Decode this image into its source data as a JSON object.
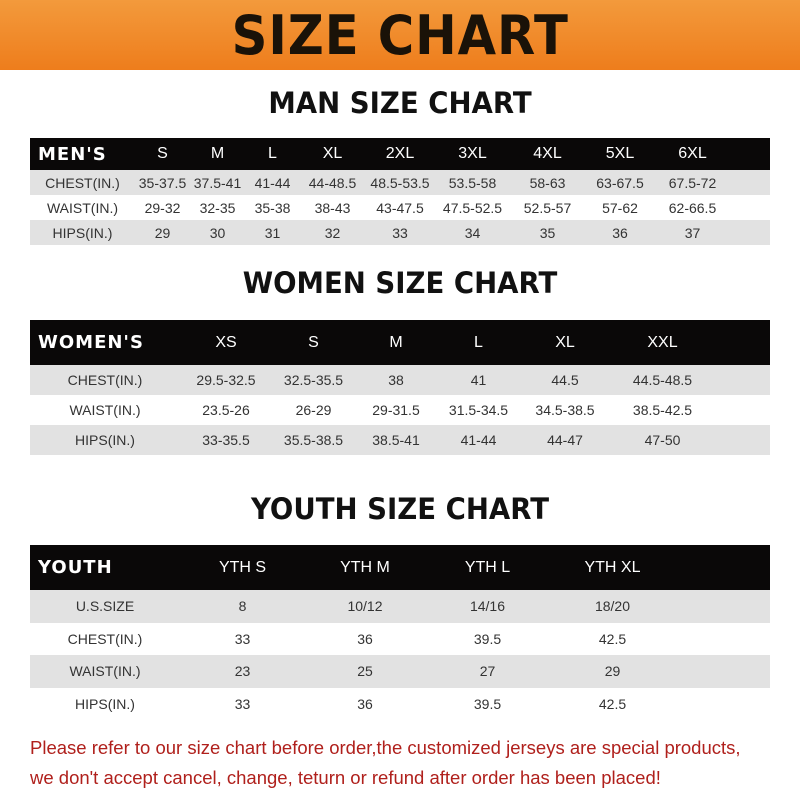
{
  "banner": {
    "title": "SIZE CHART"
  },
  "men": {
    "title": "MAN SIZE CHART",
    "header": [
      "MEN'S",
      "S",
      "M",
      "L",
      "XL",
      "2XL",
      "3XL",
      "4XL",
      "5XL",
      "6XL"
    ],
    "rows": [
      [
        "CHEST(IN.)",
        "35-37.5",
        "37.5-41",
        "41-44",
        "44-48.5",
        "48.5-53.5",
        "53.5-58",
        "58-63",
        "63-67.5",
        "67.5-72"
      ],
      [
        "WAIST(IN.)",
        "29-32",
        "32-35",
        "35-38",
        "38-43",
        "43-47.5",
        "47.5-52.5",
        "52.5-57",
        "57-62",
        "62-66.5"
      ],
      [
        "HIPS(IN.)",
        "29",
        "30",
        "31",
        "32",
        "33",
        "34",
        "35",
        "36",
        "37"
      ]
    ]
  },
  "women": {
    "title": "WOMEN SIZE CHART",
    "header": [
      "WOMEN'S",
      "XS",
      "S",
      "M",
      "L",
      "XL",
      "XXL"
    ],
    "rows": [
      [
        "CHEST(IN.)",
        "29.5-32.5",
        "32.5-35.5",
        "38",
        "41",
        "44.5",
        "44.5-48.5"
      ],
      [
        "WAIST(IN.)",
        "23.5-26",
        "26-29",
        "29-31.5",
        "31.5-34.5",
        "34.5-38.5",
        "38.5-42.5"
      ],
      [
        "HIPS(IN.)",
        "33-35.5",
        "35.5-38.5",
        "38.5-41",
        "41-44",
        "44-47",
        "47-50"
      ]
    ]
  },
  "youth": {
    "title": "YOUTH SIZE CHART",
    "header": [
      "YOUTH",
      "YTH S",
      "YTH M",
      "YTH L",
      "YTH XL"
    ],
    "rows": [
      [
        "U.S.SIZE",
        "8",
        "10/12",
        "14/16",
        "18/20"
      ],
      [
        "CHEST(IN.)",
        "33",
        "36",
        "39.5",
        "42.5"
      ],
      [
        "WAIST(IN.)",
        "23",
        "25",
        "27",
        "29"
      ],
      [
        "HIPS(IN.)",
        "33",
        "36",
        "39.5",
        "42.5"
      ]
    ]
  },
  "note": {
    "line1": "Please refer to our size chart before order,the customized jerseys are special products,",
    "line2": "we don't accept cancel, change, teturn or refund after order has been placed!"
  },
  "colors": {
    "banner": "#ee7d1c",
    "header_row": "#0a0808",
    "stripe": "#e2e2e2",
    "note": "#b0201c"
  }
}
